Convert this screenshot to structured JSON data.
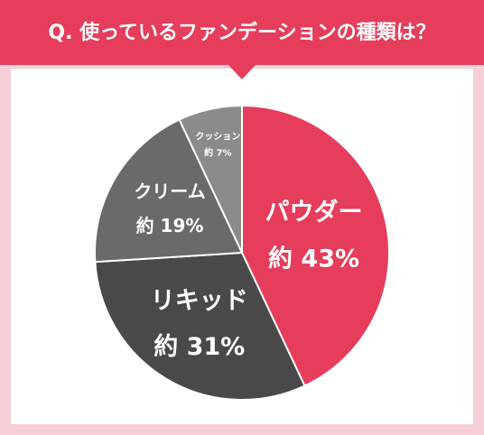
{
  "chart_data": {
    "type": "pie",
    "title": "Q. 使っているファンデーションの種類は？",
    "categories": [
      "パウダー",
      "リキッド",
      "クリーム",
      "クッション"
    ],
    "values": [
      43,
      31,
      19,
      7
    ],
    "value_labels": [
      "約 43%",
      "約 31%",
      "約 19%",
      "約 7%"
    ],
    "colors": [
      "#e53d5b",
      "#494949",
      "#6a6a6a",
      "#8b8b8b"
    ]
  }
}
